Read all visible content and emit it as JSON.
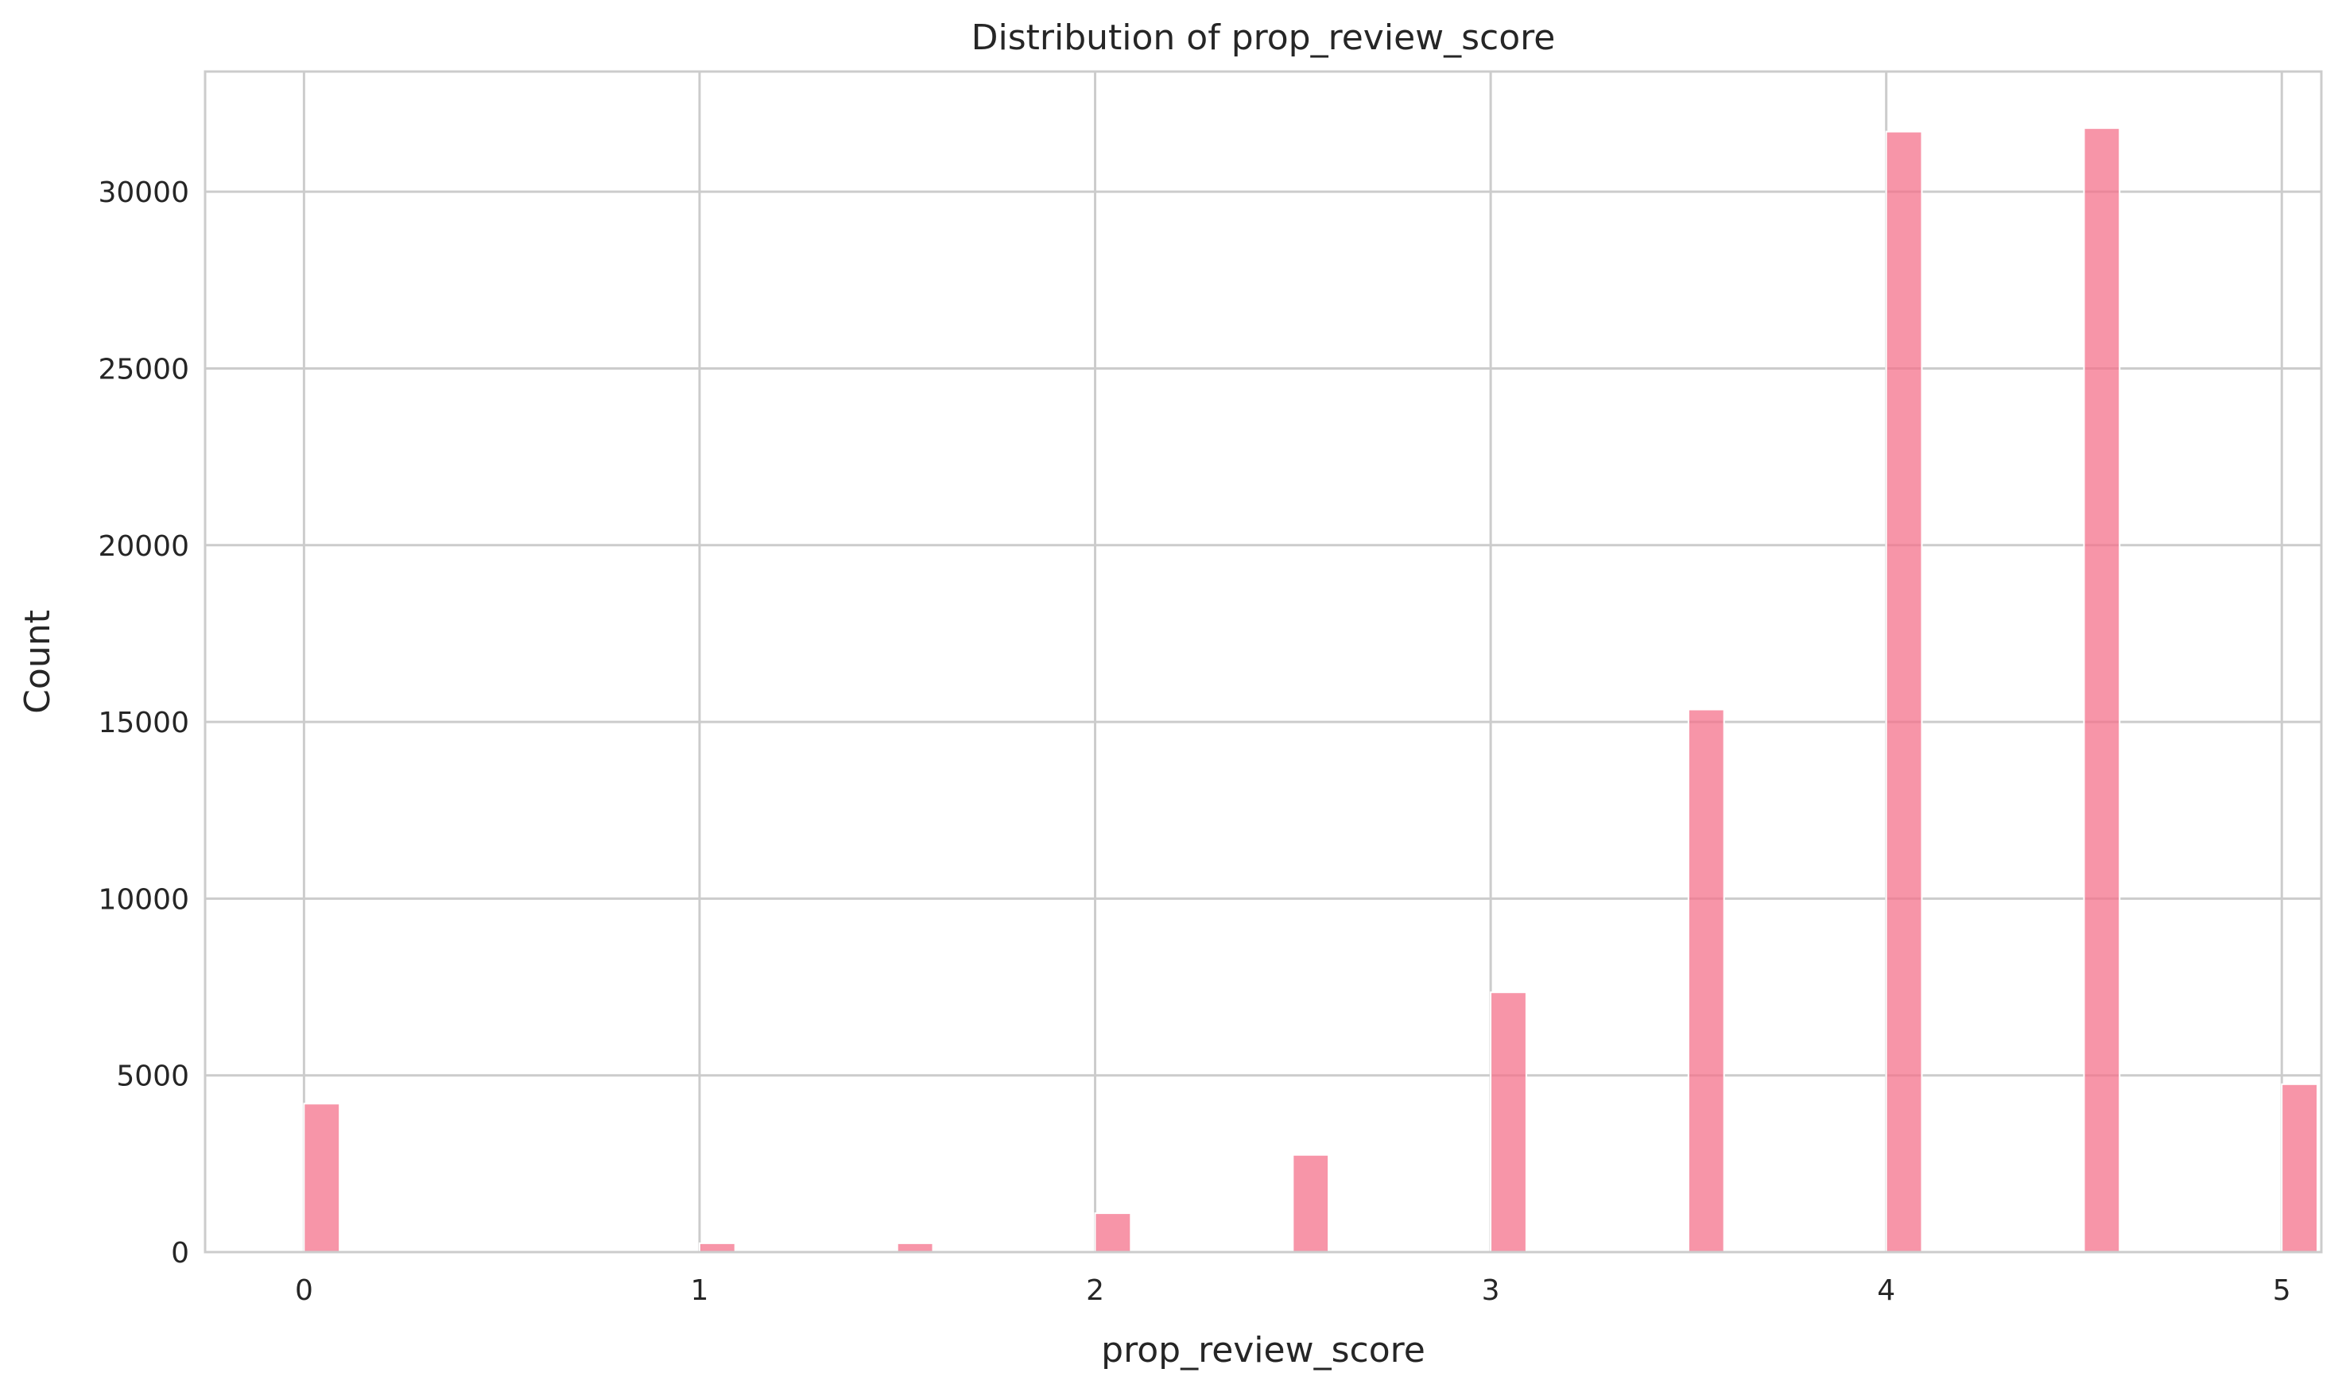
{
  "chart_data": {
    "type": "bar",
    "title": "Distribution of prop_review_score",
    "xlabel": "prop_review_score",
    "ylabel": "Count",
    "xlim": [
      -0.25,
      5.1
    ],
    "ylim": [
      0,
      33400
    ],
    "x_ticks": [
      "0",
      "1",
      "2",
      "3",
      "4",
      "5"
    ],
    "y_ticks": [
      "0",
      "5000",
      "10000",
      "15000",
      "20000",
      "25000",
      "30000"
    ],
    "x": [
      0,
      1,
      1.5,
      2,
      2.5,
      3,
      3.5,
      4,
      4.5,
      5
    ],
    "values": [
      4200,
      250,
      250,
      1100,
      2750,
      7350,
      15350,
      31700,
      31800,
      4750
    ],
    "bar_width": 0.09,
    "grid": true,
    "colors": {
      "bar": "#f4728b",
      "grid": "#cccccc",
      "spine": "#cccccc",
      "text": "#262626"
    }
  }
}
